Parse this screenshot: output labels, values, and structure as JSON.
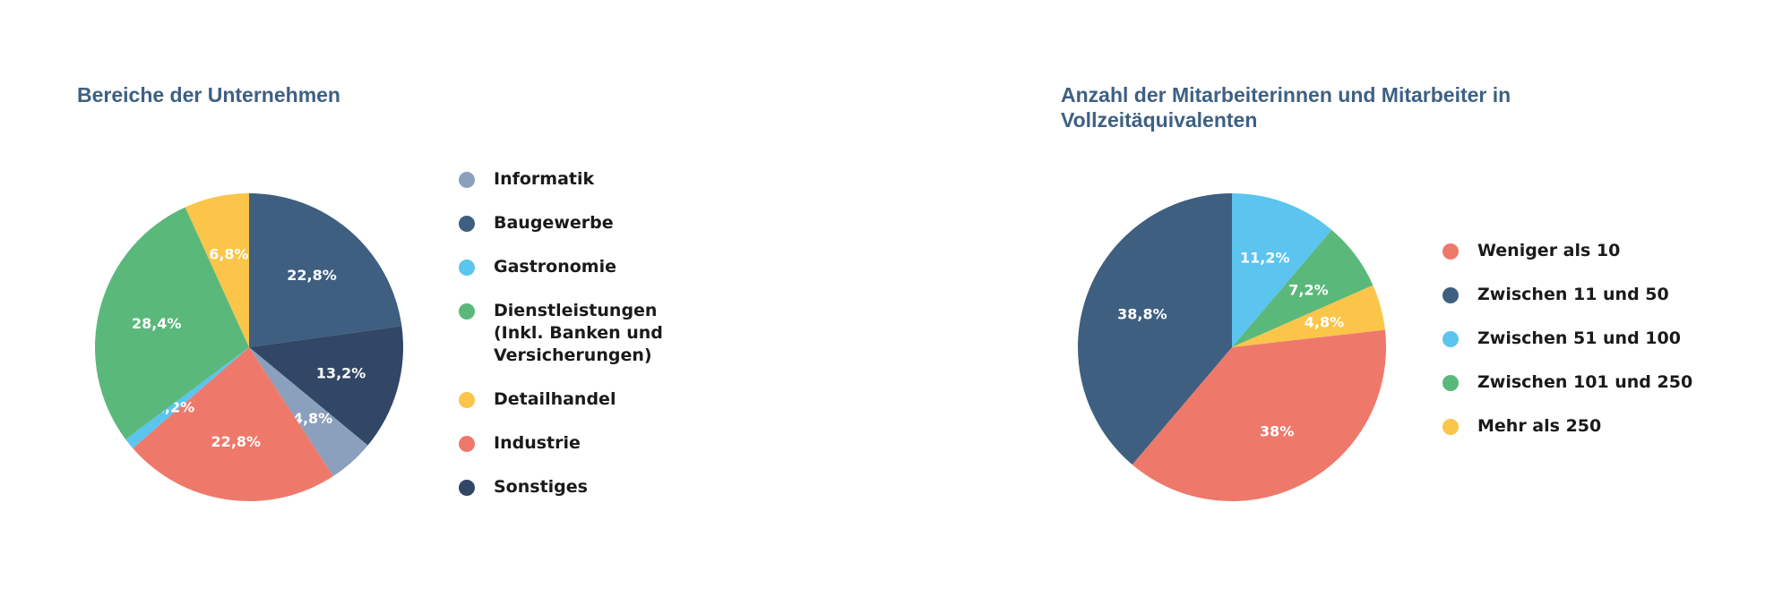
{
  "chart_data": [
    {
      "type": "pie",
      "title": "Bereiche der Unternehmen",
      "legend_placement": "right",
      "series": [
        {
          "name": "Informatik",
          "value": 4.8,
          "label": "4,8%",
          "color": "#8aa0bd"
        },
        {
          "name": "Baugewerbe",
          "value": 22.8,
          "label": "22,8%",
          "color": "#3e5f80"
        },
        {
          "name": "Gastronomie",
          "value": 1.2,
          "label": "1,2%",
          "color": "#5bc4ef"
        },
        {
          "name": "Dienstleistungen (Inkl. Banken und Versicherungen)",
          "value": 28.4,
          "label": "28,4%",
          "color": "#5bb87b"
        },
        {
          "name": "Detailhandel",
          "value": 6.8,
          "label": "6,8%",
          "color": "#fac549"
        },
        {
          "name": "Industrie",
          "value": 22.8,
          "label": "22,8%",
          "color": "#ee796b"
        },
        {
          "name": "Sonstiges",
          "value": 13.2,
          "label": "13,2%",
          "color": "#324766"
        }
      ],
      "slice_order": [
        "Baugewerbe",
        "Sonstiges",
        "Informatik",
        "Industrie",
        "Gastronomie",
        "Dienstleistungen (Inkl. Banken und Versicherungen)",
        "Detailhandel"
      ]
    },
    {
      "type": "pie",
      "title": "Anzahl der Mitarbeiterinnen und Mitarbeiter in Vollzeitäquivalenten",
      "legend_placement": "right",
      "series": [
        {
          "name": "Weniger als 10",
          "value": 38,
          "label": "38%",
          "color": "#ee796b"
        },
        {
          "name": "Zwischen 11 und 50",
          "value": 38.8,
          "label": "38,8%",
          "color": "#3e5f80"
        },
        {
          "name": "Zwischen 51 und 100",
          "value": 11.2,
          "label": "11,2%",
          "color": "#5bc4ef"
        },
        {
          "name": "Zwischen 101 und 250",
          "value": 7.2,
          "label": "7,2%",
          "color": "#5bb87b"
        },
        {
          "name": "Mehr als 250",
          "value": 4.8,
          "label": "4,8%",
          "color": "#fac549"
        }
      ],
      "slice_order": [
        "Zwischen 51 und 100",
        "Zwischen 101 und 250",
        "Mehr als 250",
        "Weniger als 10",
        "Zwischen 11 und 50"
      ]
    }
  ]
}
